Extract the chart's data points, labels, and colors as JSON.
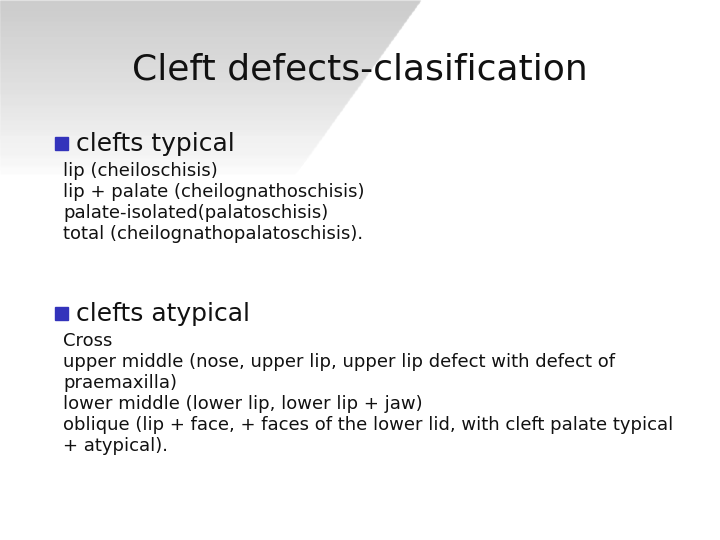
{
  "title": "Cleft defects-clasification",
  "bullet_color": "#3333bb",
  "title_fontsize": 26,
  "bullet_header_fontsize": 18,
  "body_fontsize": 13,
  "bullet1_header": "clefts typical",
  "bullet1_lines": [
    "lip (cheiloschisis)",
    "lip + palate (cheilognathoschisis)",
    "palate-isolated(palatoschisis)",
    "total (cheilognathopalatoschisis)."
  ],
  "bullet2_header": "clefts atypical",
  "bullet2_lines": [
    "Cross",
    "upper middle (nose, upper lip, upper lip defect with defect of",
    "praemaxilla)",
    "lower middle (lower lip, lower lip + jaw)",
    "oblique (lip + face, + faces of the lower lid, with cleft palate typical",
    "+ atypical)."
  ]
}
